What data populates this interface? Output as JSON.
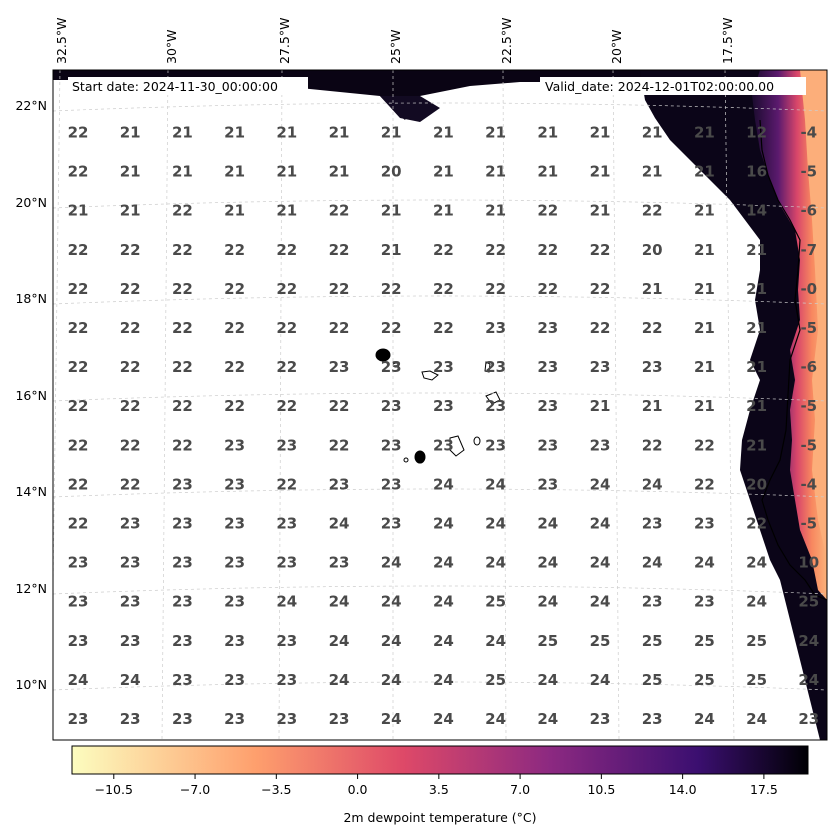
{
  "map": {
    "start_label": "Start date: 2024-11-30_00:00:00",
    "valid_label": "Valid_date: 2024-12-01T02:00:00.00",
    "lon_labels": [
      "32.5°W",
      "30°W",
      "27.5°W",
      "25°W",
      "22.5°W",
      "20°W",
      "17.5°W"
    ],
    "lat_labels": [
      "22°N",
      "20°N",
      "18°N",
      "16°N",
      "14°N",
      "12°N",
      "10°N"
    ],
    "grid_values": [
      [
        "22",
        "21",
        "21",
        "21",
        "21",
        "21",
        "21",
        "21",
        "21",
        "21",
        "21",
        "21",
        "21",
        "12",
        "-4"
      ],
      [
        "22",
        "21",
        "21",
        "21",
        "21",
        "21",
        "20",
        "21",
        "21",
        "21",
        "21",
        "21",
        "21",
        "16",
        "-5"
      ],
      [
        "21",
        "21",
        "22",
        "21",
        "21",
        "22",
        "21",
        "21",
        "21",
        "22",
        "21",
        "22",
        "21",
        "14",
        "-6"
      ],
      [
        "22",
        "22",
        "22",
        "22",
        "22",
        "22",
        "21",
        "22",
        "22",
        "22",
        "22",
        "20",
        "21",
        "21",
        "-7"
      ],
      [
        "22",
        "22",
        "22",
        "22",
        "22",
        "22",
        "22",
        "22",
        "22",
        "22",
        "22",
        "21",
        "21",
        "21",
        "-0"
      ],
      [
        "22",
        "22",
        "22",
        "22",
        "22",
        "22",
        "22",
        "22",
        "23",
        "23",
        "22",
        "22",
        "21",
        "21",
        "-5"
      ],
      [
        "22",
        "22",
        "22",
        "22",
        "22",
        "23",
        "23",
        "23",
        "23",
        "23",
        "23",
        "23",
        "21",
        "21",
        "-6"
      ],
      [
        "22",
        "22",
        "22",
        "22",
        "22",
        "22",
        "23",
        "23",
        "23",
        "23",
        "21",
        "21",
        "21",
        "21",
        "-5"
      ],
      [
        "22",
        "22",
        "22",
        "23",
        "23",
        "22",
        "23",
        "23",
        "23",
        "23",
        "23",
        "22",
        "22",
        "21",
        "-5"
      ],
      [
        "22",
        "22",
        "23",
        "23",
        "22",
        "23",
        "23",
        "24",
        "24",
        "23",
        "24",
        "24",
        "22",
        "20",
        "-4"
      ],
      [
        "22",
        "23",
        "23",
        "23",
        "23",
        "24",
        "23",
        "24",
        "24",
        "24",
        "24",
        "23",
        "23",
        "22",
        "-5"
      ],
      [
        "23",
        "23",
        "23",
        "23",
        "23",
        "23",
        "24",
        "24",
        "24",
        "24",
        "24",
        "24",
        "24",
        "24",
        "10"
      ],
      [
        "23",
        "23",
        "23",
        "23",
        "24",
        "24",
        "24",
        "24",
        "25",
        "24",
        "24",
        "23",
        "23",
        "24",
        "25"
      ],
      [
        "23",
        "23",
        "23",
        "23",
        "23",
        "24",
        "24",
        "24",
        "24",
        "25",
        "25",
        "25",
        "25",
        "25",
        "24"
      ],
      [
        "24",
        "24",
        "23",
        "23",
        "23",
        "24",
        "24",
        "24",
        "25",
        "24",
        "24",
        "25",
        "25",
        "25",
        "24"
      ],
      [
        "23",
        "23",
        "23",
        "23",
        "23",
        "23",
        "24",
        "24",
        "24",
        "24",
        "23",
        "23",
        "24",
        "24",
        "23"
      ]
    ]
  },
  "colorbar": {
    "title": "2m dewpoint temperature ($^\\circ$C)",
    "title_display": "2m dewpoint temperature (°C)",
    "ticks": [
      "−10.5",
      "−7.0",
      "−3.5",
      "0.0",
      "3.5",
      "7.0",
      "10.5",
      "14.0",
      "17.5"
    ],
    "tick_values": [
      -10.5,
      -7.0,
      -3.5,
      0.0,
      3.5,
      7.0,
      10.5,
      14.0,
      17.5
    ],
    "range": [
      -12.3,
      19.4
    ],
    "colors": [
      "#fcfdbf",
      "#fe9f6d",
      "#de4968",
      "#8c2981",
      "#3b0f70",
      "#000004"
    ]
  }
}
